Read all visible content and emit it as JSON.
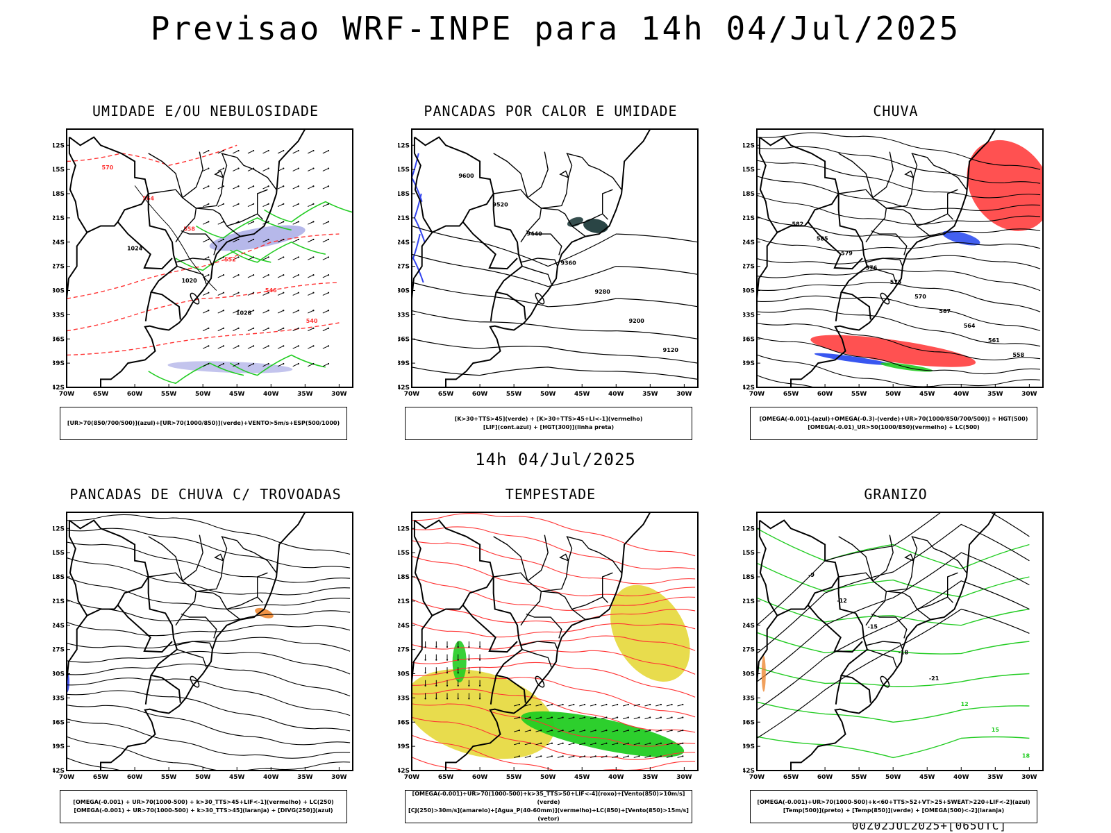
{
  "title": "Previsao WRF-INPE  para 14h 04/Jul/2025",
  "subtitle": "14h 04/Jul/2025",
  "footer": "00Z02JUL2025+[065UTC]",
  "axes": {
    "lat_labels": [
      "12S",
      "15S",
      "18S",
      "21S",
      "24S",
      "27S",
      "30S",
      "33S",
      "36S",
      "39S",
      "42S"
    ],
    "lon_labels": [
      "70W",
      "65W",
      "60W",
      "55W",
      "50W",
      "45W",
      "40W",
      "35W",
      "30W"
    ]
  },
  "panels": [
    {
      "id": "umidade",
      "title": "UMIDADE E/OU NEBULOSIDADE",
      "legend": [
        "[UR>70(850/700/500)](azul)+[UR>70(1000/850)](verde)+VENTO>5m/s+ESP(500/1000)"
      ],
      "labels": [
        "1024",
        "1020",
        "1028",
        "570",
        "564",
        "558",
        "552",
        "546",
        "540"
      ],
      "colors": {
        "blue": "#a9abe6",
        "green": "#22cc22",
        "red": "#ff3333"
      }
    },
    {
      "id": "pancadas-calor",
      "title": "PANCADAS POR CALOR E UMIDADE",
      "legend": [
        "[K>30+TTS>45](verde) + [K>30+TTS>45+LI<-1](vermelho)",
        "[LIF](cont.azul) + [HGT(300)](linha preta)"
      ],
      "labels": [
        "9600",
        "9520",
        "9440",
        "9360",
        "9280",
        "9200",
        "9120"
      ],
      "colors": {
        "blue": "#3344ee",
        "teal": "#1f3b3b",
        "red": "#ff3333"
      }
    },
    {
      "id": "chuva",
      "title": "CHUVA",
      "legend": [
        "[OMEGA(-0.001)-(azul)+OMEGA(-0.3)-(verde)+UR>70(1000/850/700/500)] + HGT(500)",
        "[OMEGA(-0.01)_UR>50(1000/850)(vermelho) + LC(500)"
      ],
      "labels": [
        "582",
        "585",
        "579",
        "576",
        "573",
        "570",
        "567",
        "564",
        "561",
        "558"
      ],
      "colors": {
        "red": "#ff3333",
        "blue": "#2244ee",
        "green": "#22cc22"
      }
    },
    {
      "id": "trovoadas",
      "title": "PANCADAS DE CHUVA C/ TROVOADAS",
      "legend": [
        "[OMEGA(-0.001) + UR>70(1000-500) + k>30_TTS>45+LIF<-1](vermelho) + LC(250)",
        "[OMEGA(-0.001) + UR>70(1000-500) + k>30_TTS>45](laranja) + [DIVG(250)](azul)"
      ],
      "labels": [],
      "colors": {
        "orange": "#ee8833",
        "blue": "#3344ee"
      }
    },
    {
      "id": "tempestade",
      "title": "TEMPESTADE",
      "legend": [
        "[OMEGA(-0.001)+UR>70(1000-500)+k>35_TTS>50+LIF<-4](roxo)+[Vento(850)>10m/s](verde)",
        "[CJ(250)>30m/s](amarelo)+[Agua_P(40-60mm)](vermelho)+LC(850)+[Vento(850)>15m/s](vetor)"
      ],
      "labels": [],
      "colors": {
        "yellow": "#e5d83a",
        "green": "#22cc22",
        "red": "#ff3333"
      }
    },
    {
      "id": "granizo",
      "title": "GRANIZO",
      "legend": [
        "[OMEGA(-0.001)+UR>70(1000-500)+k<60+TTS>52+VT>25+SWEAT>220+LIF<-2](azul)",
        "[Temp(500)](preto) + [Temp(850)](verde) + [OMEGA(500)<-2](laranja)"
      ],
      "labels": [
        "-9",
        "-12",
        "-15",
        "-18",
        "-21",
        "12",
        "15",
        "18"
      ],
      "colors": {
        "green": "#22cc22",
        "orange": "#ee8833"
      }
    }
  ]
}
